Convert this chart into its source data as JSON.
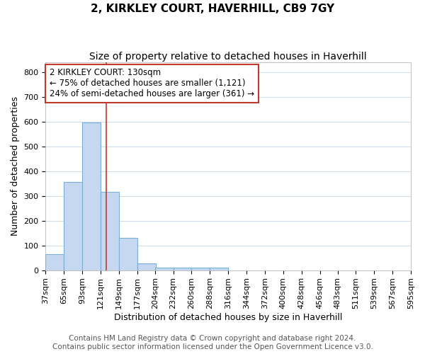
{
  "title": "2, KIRKLEY COURT, HAVERHILL, CB9 7GY",
  "subtitle": "Size of property relative to detached houses in Haverhill",
  "xlabel": "Distribution of detached houses by size in Haverhill",
  "ylabel": "Number of detached properties",
  "footer_line1": "Contains HM Land Registry data © Crown copyright and database right 2024.",
  "footer_line2": "Contains public sector information licensed under the Open Government Licence v3.0.",
  "bin_edges": [
    37,
    65,
    93,
    121,
    149,
    177,
    204,
    232,
    260,
    288,
    316,
    344,
    372,
    400,
    428,
    456,
    483,
    511,
    539,
    567,
    595
  ],
  "bin_labels": [
    "37sqm",
    "65sqm",
    "93sqm",
    "121sqm",
    "149sqm",
    "177sqm",
    "204sqm",
    "232sqm",
    "260sqm",
    "288sqm",
    "316sqm",
    "344sqm",
    "372sqm",
    "400sqm",
    "428sqm",
    "456sqm",
    "483sqm",
    "511sqm",
    "539sqm",
    "567sqm",
    "595sqm"
  ],
  "counts": [
    65,
    355,
    595,
    315,
    130,
    28,
    10,
    10,
    10,
    10,
    0,
    0,
    0,
    0,
    0,
    0,
    0,
    0,
    0,
    0
  ],
  "bar_color": "#c5d8f0",
  "bar_edge_color": "#7aaed6",
  "property_size": 130,
  "vline_color": "#c0392b",
  "annotation_line1": "2 KIRKLEY COURT: 130sqm",
  "annotation_line2": "← 75% of detached houses are smaller (1,121)",
  "annotation_line3": "24% of semi-detached houses are larger (361) →",
  "annotation_box_color": "white",
  "annotation_box_edge": "#c0392b",
  "ylim": [
    0,
    840
  ],
  "yticks": [
    0,
    100,
    200,
    300,
    400,
    500,
    600,
    700,
    800
  ],
  "bg_color": "white",
  "grid_color": "#d0dde8",
  "title_fontsize": 11,
  "subtitle_fontsize": 10,
  "label_fontsize": 9,
  "tick_fontsize": 8,
  "footer_fontsize": 7.5
}
